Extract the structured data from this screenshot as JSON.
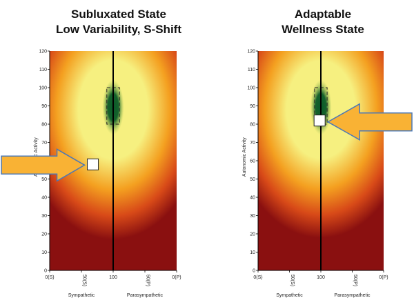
{
  "chart_data": [
    {
      "type": "heatmap",
      "title_lines": [
        "Subluxated State",
        "Low Variability, S-Shift"
      ],
      "xlabel_left": "Sympathetic",
      "xlabel_right": "Parasympathetic",
      "ylabel": "Autonomic Activity",
      "xlim": [
        0,
        200
      ],
      "ylim": [
        0,
        120
      ],
      "x_tick_labels": [
        "0(S)",
        "50(S)",
        "100",
        "50(P)",
        "0(P)"
      ],
      "y_ticks": [
        0,
        10,
        20,
        30,
        40,
        50,
        60,
        70,
        80,
        90,
        100,
        110,
        120
      ],
      "target_zone": {
        "x_range": [
          90,
          110
        ],
        "y_range": [
          80,
          100
        ]
      },
      "center_line_x": 100,
      "marker": {
        "x": 68,
        "y": 58
      },
      "arrow_direction": "right",
      "colors": {
        "low": "#8a1010",
        "mid": "#f4a020",
        "high": "#f6f080",
        "center": "#0a5a28"
      }
    },
    {
      "type": "heatmap",
      "title_lines": [
        "Adaptable",
        "Wellness State"
      ],
      "xlabel_left": "Sympathetic",
      "xlabel_right": "Parasympathetic",
      "ylabel": "Autonomic Activity",
      "xlim": [
        0,
        200
      ],
      "ylim": [
        0,
        120
      ],
      "x_tick_labels": [
        "0(S)",
        "50(S)",
        "100",
        "50(P)",
        "0(P)"
      ],
      "y_ticks": [
        0,
        10,
        20,
        30,
        40,
        50,
        60,
        70,
        80,
        90,
        100,
        110,
        120
      ],
      "target_zone": {
        "x_range": [
          90,
          110
        ],
        "y_range": [
          80,
          100
        ]
      },
      "center_line_x": 100,
      "marker": {
        "x": 98,
        "y": 82
      },
      "arrow_direction": "left",
      "colors": {
        "low": "#8a1010",
        "mid": "#f4a020",
        "high": "#f6f080",
        "center": "#0a5a28"
      }
    }
  ]
}
